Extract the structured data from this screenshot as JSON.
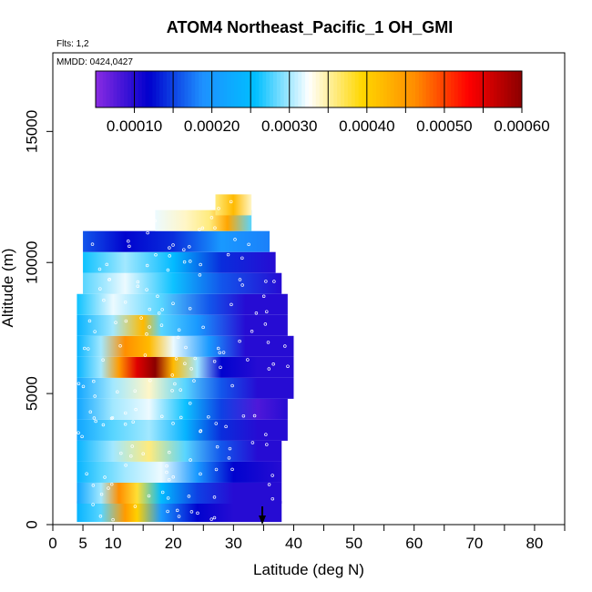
{
  "chart_data": {
    "type": "heatmap",
    "title": "ATOM4 Northeast_Pacific_1 OH_GMI",
    "annotation_flights": "Flts: 1,2",
    "annotation_dates": "MMDD: 0424,0427",
    "xlabel": "Latitude (deg N)",
    "ylabel": "Altitude (m)",
    "xlim": [
      0,
      85
    ],
    "ylim": [
      0,
      18000
    ],
    "x_ticks": [
      0,
      5,
      10,
      20,
      30,
      40,
      50,
      60,
      70,
      80
    ],
    "y_ticks": [
      0,
      5000,
      10000,
      15000
    ],
    "colorbar": {
      "range": [
        5e-05,
        0.0006
      ],
      "ticks": [
        "0.00010",
        "0.00020",
        "0.00030",
        "0.00040",
        "0.00050",
        "0.00060"
      ],
      "tick_values": [
        0.0001,
        0.0002,
        0.0003,
        0.0004,
        0.0005,
        0.0006
      ],
      "colors": [
        "#8a2be2",
        "#0000cd",
        "#1e90ff",
        "#00bfff",
        "#ffffff",
        "#ffd700",
        "#ff8c00",
        "#ff0000",
        "#8b0000"
      ]
    },
    "bands": [
      {
        "alt": 500,
        "lat_range": [
          4,
          38
        ],
        "values": [
          [
            4,
            0.00024
          ],
          [
            8,
            0.00028
          ],
          [
            12,
            0.00045
          ],
          [
            14,
            0.0004
          ],
          [
            18,
            0.0002
          ],
          [
            24,
            0.00012
          ],
          [
            30,
            0.0001
          ],
          [
            34,
            0.0001
          ],
          [
            38,
            0.0001
          ]
        ]
      },
      {
        "alt": 1200,
        "lat_range": [
          4,
          38
        ],
        "values": [
          [
            4,
            0.00022
          ],
          [
            8,
            0.0003
          ],
          [
            11,
            0.00046
          ],
          [
            14,
            0.00038
          ],
          [
            18,
            0.00025
          ],
          [
            24,
            0.00015
          ],
          [
            30,
            0.0001
          ],
          [
            38,
            0.0001
          ]
        ]
      },
      {
        "alt": 2000,
        "lat_range": [
          4,
          38
        ],
        "values": [
          [
            4,
            0.00024
          ],
          [
            8,
            0.00028
          ],
          [
            12,
            0.0003
          ],
          [
            18,
            0.00032
          ],
          [
            24,
            0.0002
          ],
          [
            30,
            0.00012
          ],
          [
            38,
            0.0001
          ]
        ]
      },
      {
        "alt": 2800,
        "lat_range": [
          4,
          38
        ],
        "values": [
          [
            4,
            0.00024
          ],
          [
            10,
            0.0003
          ],
          [
            16,
            0.00036
          ],
          [
            22,
            0.00028
          ],
          [
            28,
            0.00016
          ],
          [
            34,
            0.0001
          ],
          [
            38,
            0.0001
          ]
        ]
      },
      {
        "alt": 3600,
        "lat_range": [
          4,
          39
        ],
        "values": [
          [
            4,
            0.00022
          ],
          [
            10,
            0.00028
          ],
          [
            16,
            0.0003
          ],
          [
            22,
            0.00024
          ],
          [
            28,
            0.00014
          ],
          [
            34,
            0.0001
          ],
          [
            39,
            0.0001
          ]
        ]
      },
      {
        "alt": 4400,
        "lat_range": [
          4,
          39
        ],
        "values": [
          [
            4,
            0.00022
          ],
          [
            10,
            0.0003
          ],
          [
            16,
            0.00032
          ],
          [
            22,
            0.00026
          ],
          [
            28,
            0.00015
          ],
          [
            34,
            8e-05
          ],
          [
            39,
            0.0001
          ]
        ]
      },
      {
        "alt": 5200,
        "lat_range": [
          4,
          40
        ],
        "values": [
          [
            4,
            0.00022
          ],
          [
            10,
            0.0003
          ],
          [
            16,
            0.00034
          ],
          [
            22,
            0.00028
          ],
          [
            28,
            0.00016
          ],
          [
            34,
            0.0001
          ],
          [
            40,
            0.0001
          ]
        ]
      },
      {
        "alt": 6000,
        "lat_range": [
          4,
          40
        ],
        "values": [
          [
            4,
            0.00024
          ],
          [
            8,
            0.0003
          ],
          [
            11,
            0.00045
          ],
          [
            14,
            0.00055
          ],
          [
            17,
            0.0006
          ],
          [
            20,
            0.00042
          ],
          [
            24,
            0.0003
          ],
          [
            28,
            0.00012
          ],
          [
            34,
            0.0001
          ],
          [
            40,
            0.0001
          ]
        ]
      },
      {
        "alt": 6800,
        "lat_range": [
          4,
          40
        ],
        "values": [
          [
            4,
            0.00024
          ],
          [
            8,
            0.0003
          ],
          [
            12,
            0.00046
          ],
          [
            16,
            0.00042
          ],
          [
            20,
            0.00032
          ],
          [
            26,
            0.0002
          ],
          [
            32,
            0.0001
          ],
          [
            40,
            0.0001
          ]
        ]
      },
      {
        "alt": 7600,
        "lat_range": [
          4,
          39
        ],
        "values": [
          [
            4,
            0.00024
          ],
          [
            10,
            0.0003
          ],
          [
            15,
            0.00042
          ],
          [
            18,
            0.00028
          ],
          [
            24,
            0.0002
          ],
          [
            32,
            0.0001
          ],
          [
            39,
            0.0001
          ]
        ]
      },
      {
        "alt": 8400,
        "lat_range": [
          4,
          39
        ],
        "values": [
          [
            4,
            0.00026
          ],
          [
            10,
            0.00032
          ],
          [
            18,
            0.00028
          ],
          [
            26,
            0.00016
          ],
          [
            32,
            0.0001
          ],
          [
            39,
            0.0001
          ]
        ]
      },
      {
        "alt": 9200,
        "lat_range": [
          5,
          38
        ],
        "values": [
          [
            5,
            0.00028
          ],
          [
            12,
            0.00032
          ],
          [
            20,
            0.00026
          ],
          [
            28,
            0.00016
          ],
          [
            38,
            0.0001
          ]
        ]
      },
      {
        "alt": 10000,
        "lat_range": [
          5,
          37
        ],
        "values": [
          [
            5,
            0.00026
          ],
          [
            12,
            0.0003
          ],
          [
            20,
            0.00025
          ],
          [
            28,
            0.00014
          ],
          [
            37,
            0.0001
          ]
        ]
      },
      {
        "alt": 10800,
        "lat_range": [
          5,
          36
        ],
        "values": [
          [
            5,
            0.00016
          ],
          [
            12,
            0.00012
          ],
          [
            20,
            0.00014
          ],
          [
            28,
            0.0002
          ],
          [
            36,
            0.00018
          ]
        ]
      },
      {
        "alt": 11600,
        "lat_range": [
          17,
          33
        ],
        "values": [
          [
            17,
            0.00032
          ],
          [
            22,
            0.00034
          ],
          [
            26,
            0.00036
          ],
          [
            29,
            0.00044
          ],
          [
            33,
            0.00028
          ]
        ]
      },
      {
        "alt": 12200,
        "lat_range": [
          27,
          33
        ],
        "values": [
          [
            27,
            0.00036
          ],
          [
            30,
            0.00042
          ],
          [
            33,
            0.00034
          ]
        ]
      }
    ]
  }
}
